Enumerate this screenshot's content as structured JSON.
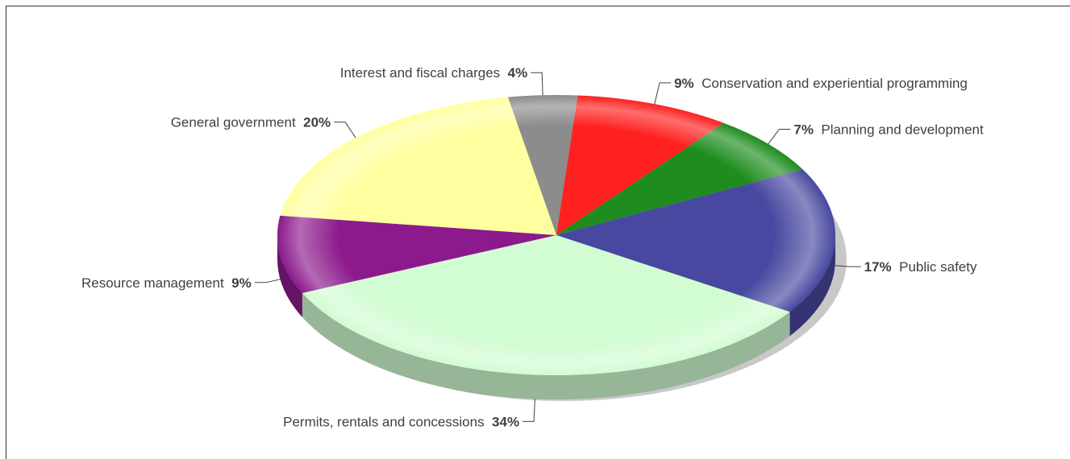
{
  "chart_data": {
    "type": "pie",
    "title": "",
    "slices": [
      {
        "label": "Interest and fiscal charges",
        "value": 4,
        "display": "4%",
        "color": "#8c8c8c"
      },
      {
        "label": "Conservation and experiential programming",
        "value": 9,
        "display": "9%",
        "color": "#ff2020"
      },
      {
        "label": "Planning and development",
        "value": 7,
        "display": "7%",
        "color": "#1e8c1e"
      },
      {
        "label": "Public safety",
        "value": 17,
        "display": "17%",
        "color": "#4848a0"
      },
      {
        "label": "Permits, rentals and concessions",
        "value": 34,
        "display": "34%",
        "color": "#d2fcd2"
      },
      {
        "label": "Resource management",
        "value": 9,
        "display": "9%",
        "color": "#8c1a8c"
      },
      {
        "label": "General government",
        "value": 20,
        "display": "20%",
        "color": "#ffffa0"
      }
    ]
  }
}
